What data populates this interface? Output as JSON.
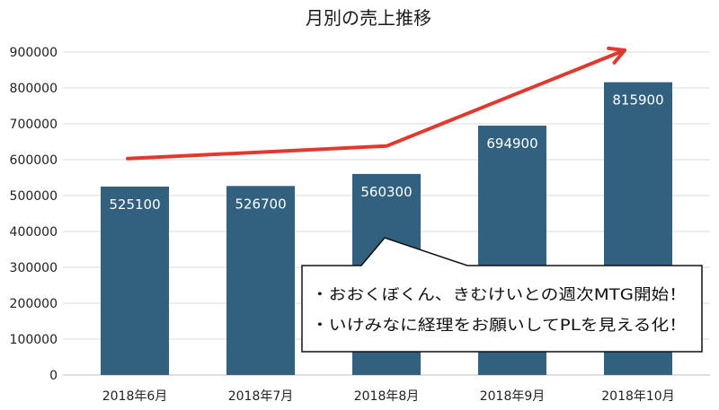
{
  "chart_data": {
    "type": "bar",
    "title": "月別の売上推移",
    "xlabel": "",
    "ylabel": "",
    "categories": [
      "2018年6月",
      "2018年7月",
      "2018年8月",
      "2018年9月",
      "2018年10月"
    ],
    "values": [
      525100,
      526700,
      560300,
      694900,
      815900
    ],
    "data_labels": [
      "525100",
      "526700",
      "560300",
      "694900",
      "815900"
    ],
    "ylim": [
      0,
      900000
    ],
    "y_ticks": [
      0,
      100000,
      200000,
      300000,
      400000,
      500000,
      600000,
      700000,
      800000,
      900000
    ],
    "y_tick_labels": [
      "0",
      "100000",
      "200000",
      "300000",
      "400000",
      "500000",
      "600000",
      "700000",
      "800000",
      "900000"
    ],
    "grid": true,
    "legend": "none",
    "bar_color": "#32607f",
    "trend_arrow": {
      "color": "#e03a2f",
      "points": [
        {
          "category": "2018年6月",
          "value": 603000
        },
        {
          "category": "2018年8月",
          "value": 638000
        },
        {
          "category": "2018年10月",
          "value": 905000
        }
      ]
    }
  },
  "callout": {
    "lines": [
      "・おおくぼくん、きむけいとの週次MTG開始！",
      "・いけみなに経理をお願いしてPLを見える化！"
    ]
  }
}
